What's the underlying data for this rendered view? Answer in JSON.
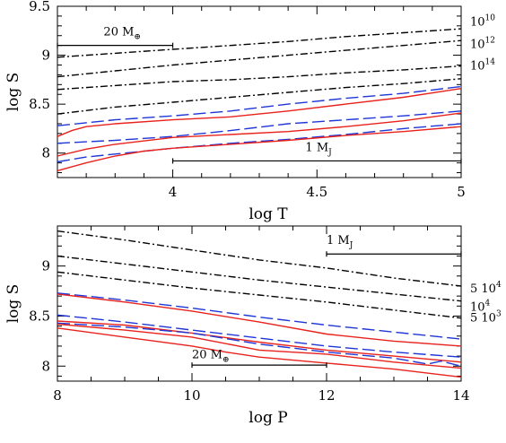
{
  "chart_data": [
    {
      "type": "line",
      "xlabel": "log T",
      "ylabel": "log S",
      "xlim": [
        3.6,
        5.0
      ],
      "ylim": [
        7.75,
        9.5
      ],
      "xticks": [
        4,
        4.5,
        5
      ],
      "yticks": [
        8,
        8.5,
        9,
        9.5
      ],
      "grid": false,
      "side_labels": [
        {
          "base": "10",
          "exp": "10",
          "y": 9.35
        },
        {
          "base": "10",
          "exp": "12",
          "y": 9.12
        },
        {
          "base": "10",
          "exp": "14",
          "y": 8.9
        }
      ],
      "annotations": [
        {
          "label": "20 M",
          "subscript": "⊕",
          "x0": 3.6,
          "x1": 4.0,
          "y": 9.1,
          "label_x": 3.76,
          "label_y": 9.2
        },
        {
          "label": "1 M",
          "subscript": "J",
          "x0": 4.0,
          "x1": 5.0,
          "y": 7.92,
          "label_x": 4.46,
          "label_y": 8.02
        }
      ],
      "series": [
        {
          "style": "dashdot",
          "color": "#000000",
          "x": [
            3.6,
            3.8,
            4.0,
            4.2,
            4.4,
            4.6,
            4.8,
            5.0
          ],
          "y": [
            8.98,
            9.02,
            9.06,
            9.1,
            9.14,
            9.19,
            9.23,
            9.27
          ]
        },
        {
          "style": "dashdot",
          "color": "#000000",
          "x": [
            3.6,
            3.8,
            4.0,
            4.2,
            4.4,
            4.6,
            4.8,
            5.0
          ],
          "y": [
            8.78,
            8.84,
            8.9,
            8.95,
            9.0,
            9.05,
            9.1,
            9.15
          ]
        },
        {
          "style": "dashdot",
          "color": "#000000",
          "x": [
            3.6,
            3.8,
            4.0,
            4.2,
            4.4,
            4.6,
            4.8,
            5.0
          ],
          "y": [
            8.65,
            8.69,
            8.73,
            8.75,
            8.78,
            8.82,
            8.85,
            8.89
          ]
        },
        {
          "style": "dashdot",
          "color": "#000000",
          "x": [
            3.6,
            3.8,
            4.0,
            4.2,
            4.4,
            4.6,
            4.8,
            5.0
          ],
          "y": [
            8.4,
            8.47,
            8.52,
            8.57,
            8.62,
            8.67,
            8.71,
            8.76
          ]
        },
        {
          "style": "dashed",
          "color": "#1f36d6",
          "x": [
            3.6,
            3.8,
            4.0,
            4.2,
            4.4,
            4.6,
            4.8,
            5.0
          ],
          "y": [
            8.28,
            8.34,
            8.38,
            8.43,
            8.5,
            8.56,
            8.61,
            8.68
          ]
        },
        {
          "style": "solid",
          "color": "#e8221c",
          "x": [
            3.6,
            3.65,
            3.7,
            3.8,
            4.0,
            4.2,
            4.4,
            4.6,
            4.8,
            5.0
          ],
          "y": [
            8.17,
            8.23,
            8.27,
            8.3,
            8.34,
            8.37,
            8.43,
            8.5,
            8.57,
            8.66
          ]
        },
        {
          "style": "dashed",
          "color": "#1f36d6",
          "x": [
            3.6,
            3.8,
            4.0,
            4.2,
            4.4,
            4.6,
            4.8,
            5.0
          ],
          "y": [
            8.1,
            8.13,
            8.17,
            8.23,
            8.3,
            8.34,
            8.38,
            8.43
          ]
        },
        {
          "style": "solid",
          "color": "#e8221c",
          "x": [
            3.6,
            3.7,
            3.8,
            4.0,
            4.2,
            4.4,
            4.6,
            4.8,
            5.0
          ],
          "y": [
            7.97,
            8.04,
            8.09,
            8.16,
            8.19,
            8.22,
            8.27,
            8.33,
            8.41
          ]
        },
        {
          "style": "dashed",
          "color": "#1f36d6",
          "x": [
            3.6,
            3.7,
            3.8,
            4.0,
            4.2,
            4.4,
            4.6,
            4.8,
            5.0
          ],
          "y": [
            7.91,
            7.96,
            7.99,
            8.05,
            8.1,
            8.14,
            8.19,
            8.25,
            8.3
          ]
        },
        {
          "style": "solid",
          "color": "#e8221c",
          "x": [
            3.6,
            3.7,
            3.8,
            3.9,
            4.0,
            4.2,
            4.4,
            4.6,
            4.8,
            5.0
          ],
          "y": [
            7.82,
            7.9,
            7.97,
            8.02,
            8.05,
            8.09,
            8.13,
            8.18,
            8.22,
            8.27
          ]
        }
      ]
    },
    {
      "type": "line",
      "xlabel": "log P",
      "ylabel": "log S",
      "xlim": [
        8,
        14
      ],
      "ylim": [
        7.85,
        9.4
      ],
      "xticks": [
        8,
        10,
        12,
        14
      ],
      "yticks": [
        8,
        8.5,
        9
      ],
      "grid": false,
      "side_labels": [
        {
          "text": "5 10",
          "exp": "4",
          "y": 8.78
        },
        {
          "text": "10",
          "exp": "4",
          "y": 8.6
        },
        {
          "text": "5 10",
          "exp": "3",
          "y": 8.49
        }
      ],
      "annotations": [
        {
          "label": "1 M",
          "subscript": "J",
          "x0": 12.0,
          "x1": 14.0,
          "y": 9.12,
          "label_x": 12.0,
          "label_y": 9.22
        },
        {
          "label": "20 M",
          "subscript": "⊕",
          "x0": 10.0,
          "x1": 12.0,
          "y": 8.01,
          "label_x": 10.0,
          "label_y": 8.08
        }
      ],
      "series": [
        {
          "style": "dashdot",
          "color": "#000000",
          "x": [
            8,
            9,
            10,
            11,
            12,
            13,
            14
          ],
          "y": [
            9.35,
            9.26,
            9.16,
            9.06,
            8.98,
            8.88,
            8.8
          ]
        },
        {
          "style": "dashdot",
          "color": "#000000",
          "x": [
            8,
            9,
            10,
            11,
            12,
            13,
            14
          ],
          "y": [
            9.1,
            9.02,
            8.94,
            8.86,
            8.79,
            8.72,
            8.65
          ]
        },
        {
          "style": "dashdot",
          "color": "#000000",
          "x": [
            8,
            9,
            10,
            11,
            12,
            13,
            14
          ],
          "y": [
            8.94,
            8.86,
            8.78,
            8.71,
            8.64,
            8.56,
            8.48
          ]
        },
        {
          "style": "dashed",
          "color": "#1f36d6",
          "x": [
            8,
            9,
            10,
            11,
            12,
            13,
            14
          ],
          "y": [
            8.73,
            8.66,
            8.58,
            8.49,
            8.41,
            8.34,
            8.27
          ]
        },
        {
          "style": "solid",
          "color": "#e8221c",
          "x": [
            8,
            9,
            10,
            11,
            12,
            13,
            14
          ],
          "y": [
            8.72,
            8.64,
            8.55,
            8.44,
            8.32,
            8.25,
            8.2
          ]
        },
        {
          "style": "dashed",
          "color": "#1f36d6",
          "x": [
            8,
            9,
            10,
            11,
            12,
            13,
            14
          ],
          "y": [
            8.51,
            8.44,
            8.36,
            8.28,
            8.2,
            8.14,
            8.09
          ]
        },
        {
          "style": "solid",
          "color": "#e8221c",
          "x": [
            8,
            9,
            10,
            11,
            12,
            13,
            14
          ],
          "y": [
            8.45,
            8.41,
            8.33,
            8.24,
            8.16,
            8.1,
            8.04
          ]
        },
        {
          "style": "dashed",
          "color": "#1f36d6",
          "x": [
            8,
            9,
            10,
            11,
            12,
            13,
            13.5,
            13.7,
            14
          ],
          "y": [
            8.43,
            8.39,
            8.33,
            8.22,
            8.14,
            8.08,
            8.02,
            8.05,
            8.0
          ]
        },
        {
          "style": "solid",
          "color": "#e8221c",
          "x": [
            8,
            9,
            10,
            11,
            12,
            13,
            14
          ],
          "y": [
            8.42,
            8.36,
            8.29,
            8.16,
            8.12,
            8.04,
            7.98
          ]
        },
        {
          "style": "solid",
          "color": "#e8221c",
          "x": [
            8,
            9,
            10,
            10.5,
            11,
            12,
            13,
            14
          ],
          "y": [
            8.38,
            8.29,
            8.2,
            8.14,
            8.09,
            8.03,
            7.97,
            7.89
          ]
        }
      ]
    }
  ]
}
